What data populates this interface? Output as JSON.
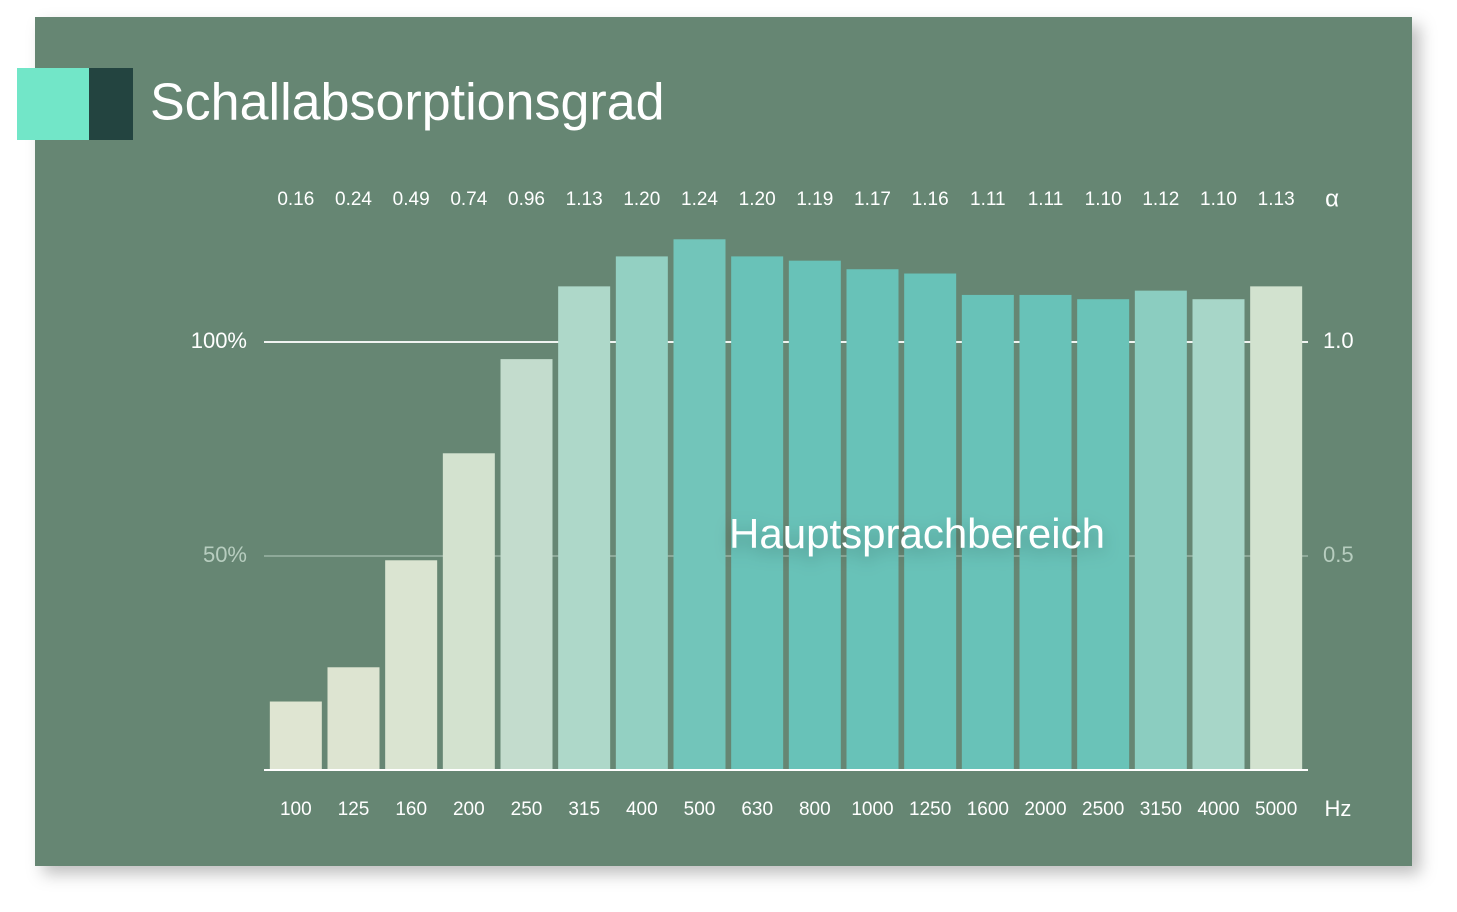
{
  "chart_data": {
    "type": "bar",
    "title": "Schallabsorptionsgrad",
    "annotation": "Hauptsprachbereich",
    "x_unit": "Hz",
    "y_unit": "α",
    "categories": [
      "100",
      "125",
      "160",
      "200",
      "250",
      "315",
      "400",
      "500",
      "630",
      "800",
      "1000",
      "1250",
      "1600",
      "2000",
      "2500",
      "3150",
      "4000",
      "5000"
    ],
    "values": [
      0.16,
      0.24,
      0.49,
      0.74,
      0.96,
      1.13,
      1.2,
      1.24,
      1.2,
      1.19,
      1.17,
      1.16,
      1.11,
      1.11,
      1.1,
      1.12,
      1.1,
      1.13
    ],
    "value_labels": [
      "0.16",
      "0.24",
      "0.49",
      "0.74",
      "0.96",
      "1.13",
      "1.20",
      "1.24",
      "1.20",
      "1.19",
      "1.17",
      "1.16",
      "1.11",
      "1.11",
      "1.10",
      "1.12",
      "1.10",
      "1.13"
    ],
    "colors": [
      "#dfe5d2",
      "#dde4d1",
      "#dae4d1",
      "#d3e2cf",
      "#c3dccd",
      "#aed8c9",
      "#93d0c2",
      "#72c5ba",
      "#69c2b8",
      "#68c2b8",
      "#68c2b8",
      "#68c2b8",
      "#68c2b8",
      "#68c2b8",
      "#6ac3b8",
      "#8bcdc0",
      "#a7d6c8",
      "#d2e2cf"
    ],
    "ylim": [
      0,
      1.3
    ],
    "yticks": [
      {
        "value": 0.5,
        "label": "50%"
      },
      {
        "value": 1,
        "label": "100%"
      }
    ],
    "y2lim": [
      0,
      1.3
    ],
    "y2ticks": [
      {
        "value": 0.5,
        "label": "0.5"
      },
      {
        "value": 1,
        "label": "1.0"
      }
    ],
    "grid": true
  }
}
